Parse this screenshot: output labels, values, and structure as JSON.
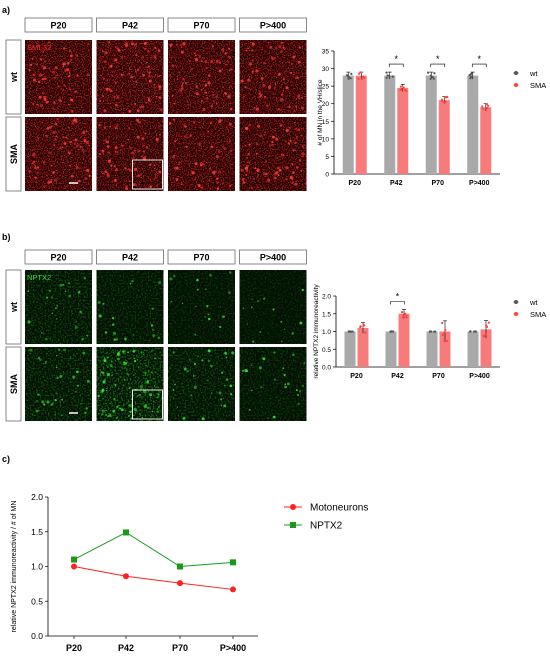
{
  "panel_a": {
    "letter": "a)",
    "columns": [
      "P20",
      "P42",
      "P70",
      "P>400"
    ],
    "rows": [
      "wt",
      "SMA"
    ],
    "stain": "SMI-32"
  },
  "panel_b": {
    "letter": "b)",
    "columns": [
      "P20",
      "P42",
      "P70",
      "P>400"
    ],
    "rows": [
      "wt",
      "SMA"
    ],
    "stain": "NPTX2"
  },
  "panel_c": {
    "letter": "c)"
  },
  "colors": {
    "wt": "#a9a9a9",
    "sma": "#f77b7b",
    "sma_dots": "#ff4040",
    "smi32": "#d01010",
    "nptx2": "#18c018",
    "motoneurons": "#ff2020",
    "nptx2_line": "#1a9a1a"
  },
  "chart_data": [
    {
      "type": "bar",
      "categories": [
        "P20",
        "P42",
        "P70",
        "P>400"
      ],
      "series": [
        {
          "name": "wt",
          "values": [
            28,
            28,
            28,
            28
          ]
        },
        {
          "name": "SMA",
          "values": [
            28,
            24.5,
            21,
            19
          ]
        }
      ],
      "error": {
        "wt": [
          1,
          1,
          1,
          1
        ],
        "SMA": [
          1,
          1,
          1,
          1
        ]
      },
      "significance": [
        "",
        "*",
        "*",
        "*"
      ],
      "ylabel": "# of MN in the VH/slice",
      "ylim": [
        0,
        35
      ],
      "yticks": [
        "0",
        "5",
        "10",
        "15",
        "20",
        "25",
        "30",
        "35"
      ],
      "legend_position": "right"
    },
    {
      "type": "bar",
      "categories": [
        "P20",
        "P42",
        "P70",
        "P>400"
      ],
      "series": [
        {
          "name": "wt",
          "values": [
            1.0,
            1.0,
            1.0,
            1.0
          ]
        },
        {
          "name": "SMA",
          "values": [
            1.1,
            1.5,
            1.0,
            1.06
          ]
        }
      ],
      "error": {
        "wt": [
          0,
          0,
          0,
          0
        ],
        "SMA": [
          0.15,
          0.12,
          0.3,
          0.25
        ]
      },
      "significance": [
        "",
        "*",
        "",
        ""
      ],
      "ylabel": "relative NPTX2 immunoreactivity",
      "ylim": [
        0,
        2.0
      ],
      "yticks": [
        "0.0",
        "0.5",
        "1.0",
        "1.5",
        "2.0"
      ],
      "legend_position": "right"
    },
    {
      "type": "line",
      "categories": [
        "P20",
        "P42",
        "P70",
        "P>400"
      ],
      "series": [
        {
          "name": "Motoneurons",
          "values": [
            1.0,
            0.86,
            0.76,
            0.67
          ]
        },
        {
          "name": "NPTX2",
          "values": [
            1.1,
            1.49,
            1.0,
            1.06
          ]
        }
      ],
      "ylabel": "relative NPTX2 immunoreactivity / # of MN",
      "ylim": [
        0,
        2.0
      ],
      "yticks": [
        "0.0",
        "0.5",
        "1.0",
        "1.5",
        "2.0"
      ],
      "legend_position": "top-right"
    }
  ]
}
